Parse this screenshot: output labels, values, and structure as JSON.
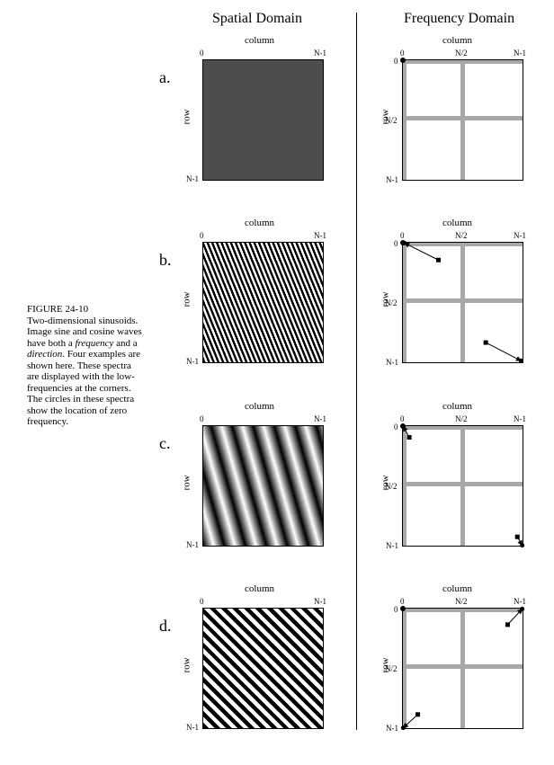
{
  "headers": {
    "spatial": "Spatial Domain",
    "frequency": "Frequency Domain"
  },
  "caption": {
    "label": "FIGURE 24-10",
    "lines": [
      "Two-dimensional sinusoids.",
      "Image sine and cosine waves",
      "have both a frequency and a",
      "direction. Four examples are",
      "shown here. These spectra",
      "are displayed with the low-",
      "frequencies at the corners.",
      "The circles in these spectra",
      "show the location of zero",
      "frequency."
    ]
  },
  "axis": {
    "column": "column",
    "row": "row",
    "zero": "0",
    "half": "N/2",
    "max": "N-1"
  },
  "panels": [
    {
      "letter": "a.",
      "pattern": "uniform"
    },
    {
      "letter": "b.",
      "pattern": "fine-diagonal"
    },
    {
      "letter": "c.",
      "pattern": "coarse-shallow"
    },
    {
      "letter": "d.",
      "pattern": "medium-diagonal"
    }
  ],
  "colors": {
    "uniform_gray": "#4d4d4d",
    "axis_bar": "#a8a8a8"
  }
}
